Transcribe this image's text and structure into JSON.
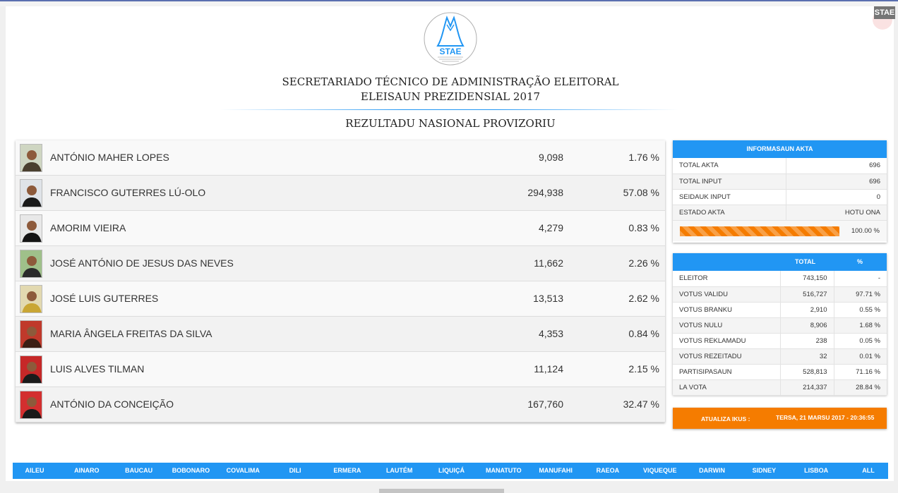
{
  "corner_badge": "STAE",
  "header": {
    "logo_text": "STAE",
    "title_line1": "SECRETARIADO TÉCNICO DE ADMINISTRAÇÃO ELEITORAL",
    "title_line2": "ELEISAUN PREZIDENSIAL 2017",
    "subtitle": "REZULTADU NASIONAL PROVIZORIU"
  },
  "candidates": [
    {
      "name": "ANTÓNIO MAHER LOPES",
      "votes": "9,098",
      "pct": "1.76 %",
      "photo": "portrait-1",
      "bg": "#cfd6c2",
      "fg": "#4a3f2e"
    },
    {
      "name": "FRANCISCO GUTERRES LÚ-OLO",
      "votes": "294,938",
      "pct": "57.08 %",
      "photo": "portrait-2",
      "bg": "#dfe3e8",
      "fg": "#1a1a1a"
    },
    {
      "name": "AMORIM VIEIRA",
      "votes": "4,279",
      "pct": "0.83 %",
      "photo": "portrait-3",
      "bg": "#e8e8e8",
      "fg": "#151515"
    },
    {
      "name": "JOSÉ ANTÓNIO DE JESUS DAS NEVES",
      "votes": "11,662",
      "pct": "2.26 %",
      "photo": "portrait-4",
      "bg": "#9fc08a",
      "fg": "#2a2a2a"
    },
    {
      "name": "JOSÉ LUIS GUTERRES",
      "votes": "13,513",
      "pct": "2.62 %",
      "photo": "portrait-5",
      "bg": "#e2d9b0",
      "fg": "#c9a634"
    },
    {
      "name": "MARIA ÂNGELA FREITAS DA SILVA",
      "votes": "4,353",
      "pct": "0.84 %",
      "photo": "portrait-6",
      "bg": "#c0392b",
      "fg": "#3b1e14"
    },
    {
      "name": "LUIS ALVES TILMAN",
      "votes": "11,124",
      "pct": "2.15 %",
      "photo": "portrait-7",
      "bg": "#c62828",
      "fg": "#1b1b1b"
    },
    {
      "name": "ANTÓNIO DA CONCEIÇÃO",
      "votes": "167,760",
      "pct": "32.47 %",
      "photo": "portrait-8",
      "bg": "#d32f2f",
      "fg": "#1a1a1a"
    }
  ],
  "akta": {
    "title": "INFORMASAUN AKTA",
    "rows": [
      {
        "label": "TOTAL AKTA",
        "value": "696"
      },
      {
        "label": "TOTAL INPUT",
        "value": "696"
      },
      {
        "label": "SEIDAUK INPUT",
        "value": "0"
      },
      {
        "label": "ESTADO AKTA",
        "value": "HOTU ONA"
      }
    ],
    "progress_label": "100.00 %",
    "progress_fraction": 1.0,
    "progress_color": "#f57c00"
  },
  "totals": {
    "col_total": "TOTAL",
    "col_pct": "%",
    "rows": [
      {
        "label": "ELEITOR",
        "total": "743,150",
        "pct": "-"
      },
      {
        "label": "VOTUS VALIDU",
        "total": "516,727",
        "pct": "97.71 %"
      },
      {
        "label": "VOTUS BRANKU",
        "total": "2,910",
        "pct": "0.55 %"
      },
      {
        "label": "VOTUS NULU",
        "total": "8,906",
        "pct": "1.68 %"
      },
      {
        "label": "VOTUS REKLAMADU",
        "total": "238",
        "pct": "0.05 %"
      },
      {
        "label": "VOTUS REZEITADU",
        "total": "32",
        "pct": "0.01 %"
      },
      {
        "label": "PARTISIPASAUN",
        "total": "528,813",
        "pct": "71.16 %"
      },
      {
        "label": "LA VOTA",
        "total": "214,337",
        "pct": "28.84 %"
      }
    ]
  },
  "update": {
    "label": "ATUALIZA IKUS :",
    "value": "TERSA, 21 MARSU 2017 - 20:36:55"
  },
  "nav": [
    "AILEU",
    "AINARO",
    "BAUCAU",
    "BOBONARO",
    "COVALIMA",
    "DILI",
    "ERMERA",
    "LAUTÉM",
    "LIQUIÇÁ",
    "MANATUTO",
    "MANUFAHI",
    "RAEOA",
    "VIQUEQUE",
    "DARWIN",
    "SIDNEY",
    "LISBOA",
    "ALL"
  ],
  "colors": {
    "accent": "#2196f3",
    "orange": "#f57c00"
  }
}
